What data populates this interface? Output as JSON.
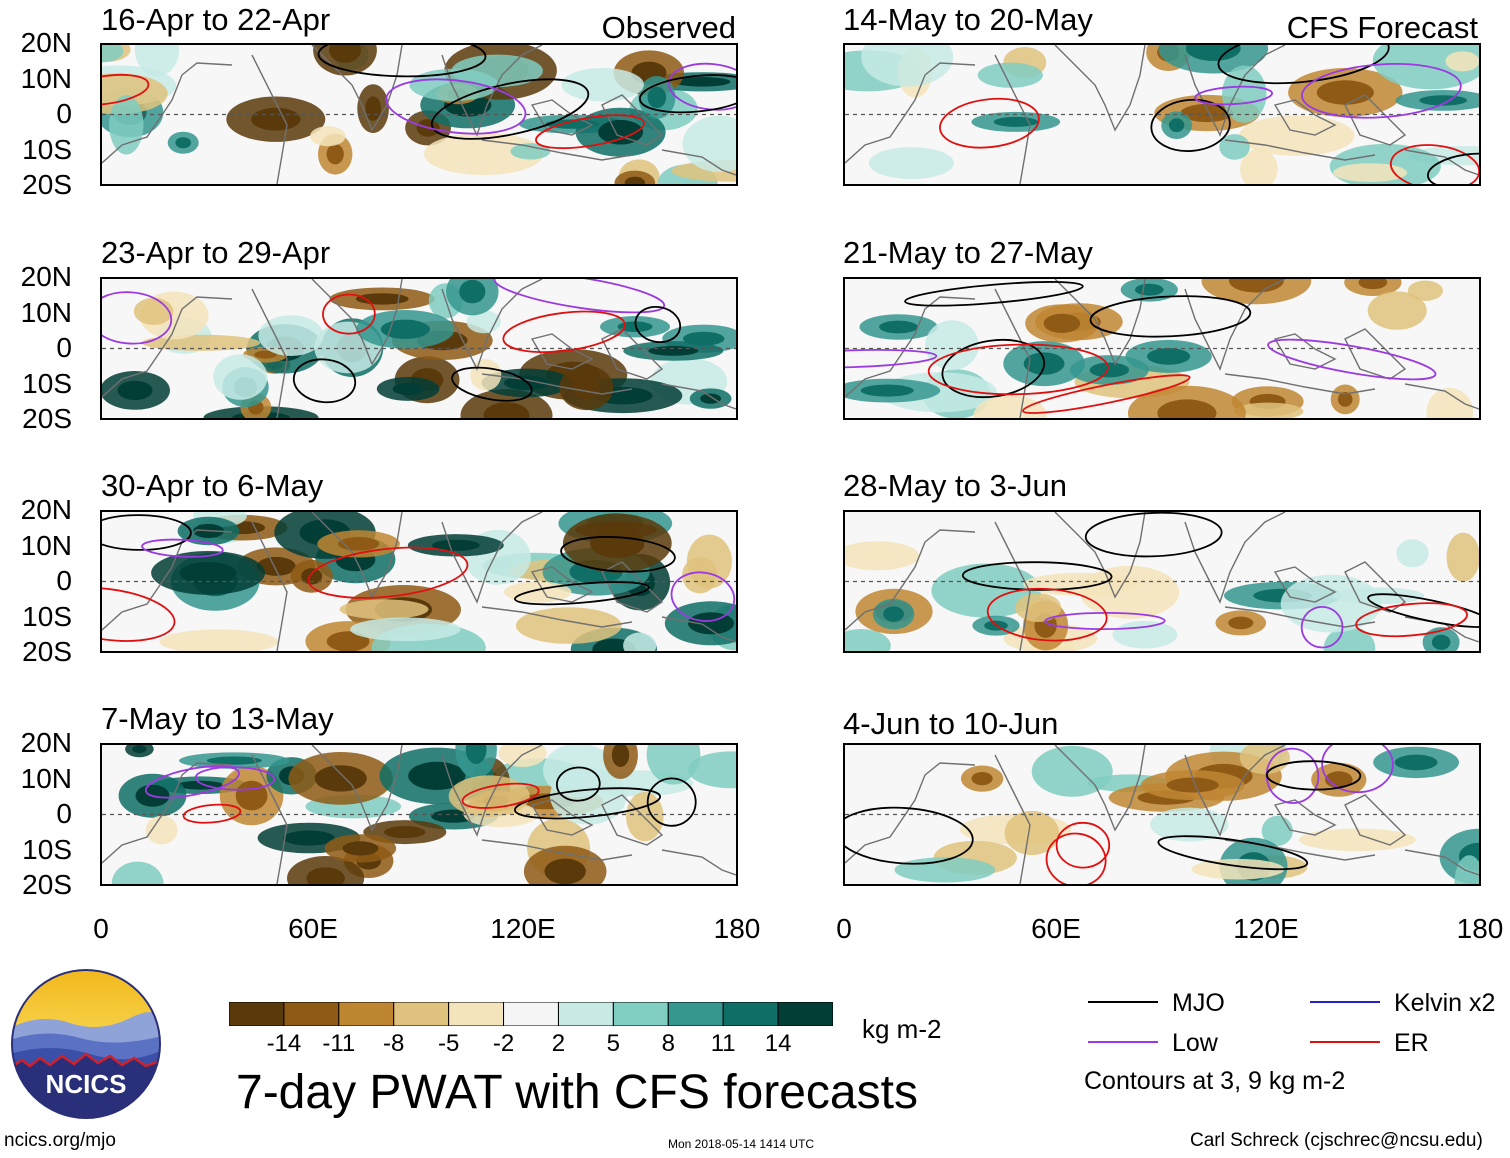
{
  "chart_data": {
    "type": "heatmap",
    "title": "7-day PWAT with CFS forecasts",
    "units": "kg m-2",
    "x_axis": {
      "label": "",
      "ticks": [
        "0",
        "60E",
        "120E",
        "180"
      ],
      "range": [
        0,
        180
      ]
    },
    "y_axis": {
      "label": "",
      "ticks": [
        "20N",
        "10N",
        "0",
        "10S",
        "20S"
      ],
      "range": [
        -20,
        20
      ]
    },
    "columns": [
      {
        "label": "Observed",
        "panels": [
          "16-Apr to 22-Apr",
          "23-Apr to 29-Apr",
          "30-Apr to 6-May",
          "7-May to 13-May"
        ]
      },
      {
        "label": "CFS Forecast",
        "panels": [
          "14-May to 20-May",
          "21-May to 27-May",
          "28-May to 3-Jun",
          "4-Jun to 10-Jun"
        ]
      }
    ],
    "colorbar": {
      "labels": [
        "-14",
        "-11",
        "-8",
        "-5",
        "-2",
        "2",
        "5",
        "8",
        "11",
        "14"
      ],
      "colors": [
        "#5a3a0b",
        "#8e5a15",
        "#bf8632",
        "#dfc27d",
        "#f4e4bb",
        "#f5f5f5",
        "#c7eae5",
        "#80cdc1",
        "#35978f",
        "#0f6f66",
        "#023d36"
      ]
    },
    "legend": [
      {
        "name": "MJO",
        "color": "#000000"
      },
      {
        "name": "Kelvin x2",
        "color": "#2020d0"
      },
      {
        "name": "Low",
        "color": "#9a3ae0"
      },
      {
        "name": "ER",
        "color": "#e01010"
      }
    ],
    "contour_note": "Contours at 3, 9 kg m-2"
  },
  "footer": {
    "logo_text": "NCICS",
    "url": "ncics.org/mjo",
    "timestamp": "Mon 2018-05-14 1414 UTC",
    "credit": "Carl Schreck (cjschrec@ncsu.edu)"
  }
}
